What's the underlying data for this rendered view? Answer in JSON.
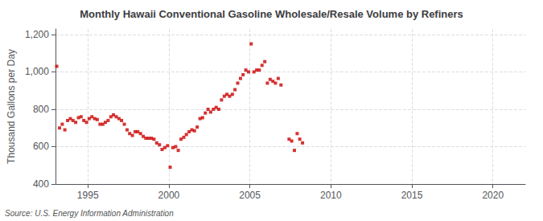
{
  "chart_data": {
    "type": "scatter",
    "title": "Monthly Hawaii Conventional Gasoline Wholesale/Resale Volume by Refiners",
    "ylabel": "Thousand Gallons per Day",
    "source": "Source: U.S. Energy Information Administration",
    "color": "#cc0000",
    "marker": "square",
    "grid": true,
    "xlim": [
      1993.0,
      2022.0
    ],
    "ylim": [
      400,
      1230
    ],
    "xticks": [
      1995,
      2000,
      2005,
      2010,
      2015,
      2020
    ],
    "yticks": [
      400,
      600,
      800,
      {
        "value": 1000,
        "label": "1,000"
      },
      {
        "value": 1200,
        "label": "1,200"
      }
    ],
    "x": [
      1993.08,
      1993.25,
      1993.42,
      1993.58,
      1993.75,
      1993.92,
      1994.08,
      1994.25,
      1994.42,
      1994.58,
      1994.75,
      1994.92,
      1995.08,
      1995.25,
      1995.42,
      1995.58,
      1995.75,
      1995.92,
      1996.08,
      1996.25,
      1996.42,
      1996.58,
      1996.75,
      1996.92,
      1997.08,
      1997.25,
      1997.42,
      1997.58,
      1997.75,
      1997.92,
      1998.08,
      1998.25,
      1998.42,
      1998.58,
      1998.75,
      1998.92,
      1999.08,
      1999.25,
      1999.42,
      1999.58,
      1999.75,
      1999.92,
      2000.08,
      2000.25,
      2000.42,
      2000.58,
      2000.75,
      2000.92,
      2001.08,
      2001.25,
      2001.42,
      2001.58,
      2001.75,
      2001.92,
      2002.08,
      2002.25,
      2002.42,
      2002.58,
      2002.75,
      2002.92,
      2003.08,
      2003.25,
      2003.42,
      2003.58,
      2003.75,
      2003.92,
      2004.08,
      2004.25,
      2004.42,
      2004.58,
      2004.75,
      2004.92,
      2005.08,
      2005.25,
      2005.42,
      2005.58,
      2005.75,
      2005.92,
      2006.08,
      2006.25,
      2006.42,
      2006.58,
      2006.75,
      2006.92,
      2007.42,
      2007.58,
      2007.75,
      2007.92,
      2008.08,
      2008.25
    ],
    "values": [
      1030,
      700,
      720,
      690,
      740,
      750,
      740,
      730,
      755,
      760,
      740,
      730,
      750,
      760,
      750,
      745,
      720,
      720,
      730,
      740,
      760,
      770,
      760,
      750,
      740,
      720,
      690,
      670,
      660,
      680,
      680,
      670,
      655,
      645,
      645,
      645,
      640,
      620,
      610,
      585,
      595,
      605,
      490,
      595,
      600,
      580,
      640,
      650,
      665,
      680,
      690,
      685,
      705,
      750,
      755,
      780,
      800,
      785,
      800,
      810,
      800,
      850,
      870,
      880,
      870,
      880,
      905,
      940,
      965,
      985,
      1010,
      1000,
      1150,
      1000,
      1010,
      1010,
      1035,
      1055,
      940,
      960,
      950,
      940,
      965,
      930,
      640,
      630,
      580,
      670,
      640,
      620
    ]
  }
}
